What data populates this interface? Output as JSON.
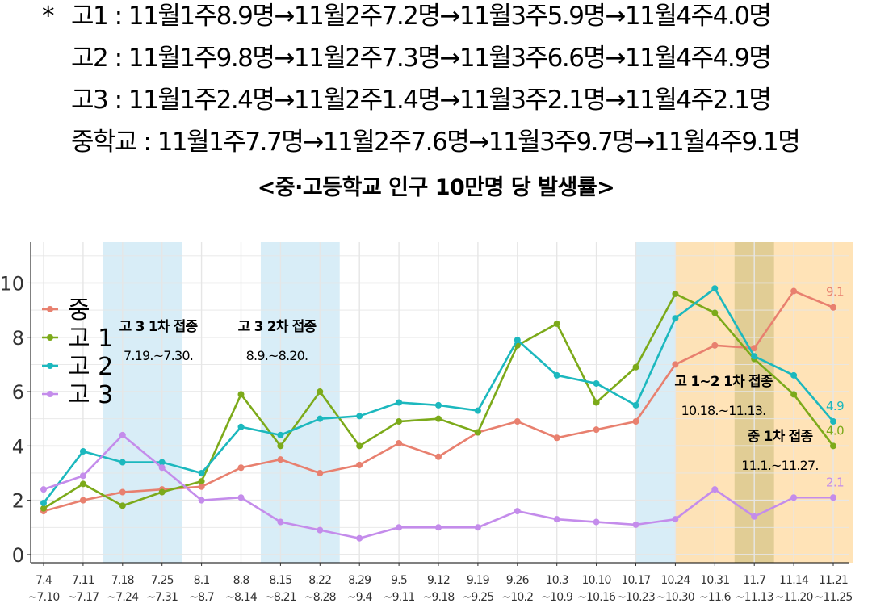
{
  "notes": {
    "star": "*",
    "lines": [
      "고1 : 11월1주8.9명→11월2주7.2명→11월3주5.9명→11월4주4.0명",
      "고2 : 11월1주9.8명→11월2주7.3명→11월3주6.6명→11월4주4.9명",
      "고3 : 11월1주2.4명→11월2주1.4명→11월3주2.1명→11월4주2.1명",
      "중학교 : 11월1주7.7명→11월2주7.6명→11월3주9.7명→11월4주9.1명"
    ],
    "subtitle": "<중·고등학교 인구 10만명 당 발생률>"
  },
  "chart_data": {
    "type": "line",
    "x": [
      "7.4\n~7.10",
      "7.11\n~7.17",
      "7.18\n~7.24",
      "7.25\n~7.31",
      "8.1\n~8.7",
      "8.8\n~8.14",
      "8.15\n~8.21",
      "8.22\n~8.28",
      "8.29\n~9.4",
      "9.5\n~9.11",
      "9.12\n~9.18",
      "9.19\n~9.25",
      "9.26\n~10.2",
      "10.3\n~10.9",
      "10.10\n~10.16",
      "10.17\n~10.23",
      "10.24\n~10.30",
      "10.31\n~11.6",
      "11.7\n~11.13",
      "11.14\n~11.20",
      "11.21\n~11.25"
    ],
    "ylim": [
      -0.3,
      11.5
    ],
    "yticks": [
      "0",
      "2",
      "4",
      "6",
      "8",
      "10"
    ],
    "grid": true,
    "legend_position": "top-left",
    "series": [
      {
        "name": "중",
        "color": "#E8806F",
        "values": [
          1.6,
          2.0,
          2.3,
          2.4,
          2.5,
          3.2,
          3.5,
          3.0,
          3.3,
          4.1,
          3.6,
          4.5,
          4.9,
          4.3,
          4.6,
          4.9,
          7.0,
          7.7,
          7.6,
          9.7,
          9.1
        ]
      },
      {
        "name": "고 1",
        "color": "#7CAA1A",
        "values": [
          1.7,
          2.6,
          1.8,
          2.3,
          2.7,
          5.9,
          4.0,
          6.0,
          4.0,
          4.9,
          5.0,
          4.5,
          7.7,
          8.5,
          5.6,
          6.9,
          9.6,
          8.9,
          7.2,
          5.9,
          4.0
        ]
      },
      {
        "name": "고 2",
        "color": "#1CB8BE",
        "values": [
          1.9,
          3.8,
          3.4,
          3.4,
          3.0,
          4.7,
          4.4,
          5.0,
          5.1,
          5.6,
          5.5,
          5.3,
          7.9,
          6.6,
          6.3,
          5.5,
          8.7,
          9.8,
          7.3,
          6.6,
          4.9
        ]
      },
      {
        "name": "고 3",
        "color": "#C48CEB",
        "values": [
          2.4,
          2.9,
          4.4,
          3.2,
          2.0,
          2.1,
          1.2,
          0.9,
          0.6,
          1.0,
          1.0,
          1.0,
          1.6,
          1.3,
          1.2,
          1.1,
          1.3,
          2.4,
          1.4,
          2.1,
          2.1
        ]
      }
    ],
    "end_labels": [
      {
        "series": "중",
        "text": "9.1"
      },
      {
        "series": "고 1",
        "text": "4.0"
      },
      {
        "series": "고 2",
        "text": "4.9"
      },
      {
        "series": "고 3",
        "text": "2.1"
      }
    ],
    "shaded_periods": [
      {
        "from": 2,
        "to": 3,
        "color": "#D6ECF7",
        "label": "고 3 1차 접종",
        "dates": "7.19.~7.30."
      },
      {
        "from": 6,
        "to": 7,
        "color": "#D6ECF7",
        "label": "고 3 2차 접종",
        "dates": "8.9.~8.20."
      },
      {
        "from": 15.5,
        "to": 16.5,
        "color": "#D6ECF7",
        "label": "고 1~2 1차 접종",
        "dates": "10.18.~11.13."
      },
      {
        "from": 16.5,
        "to": 20,
        "color": "#FFE2B3",
        "label": "중 1차 접종",
        "dates": "11.1.~11.27."
      }
    ]
  }
}
